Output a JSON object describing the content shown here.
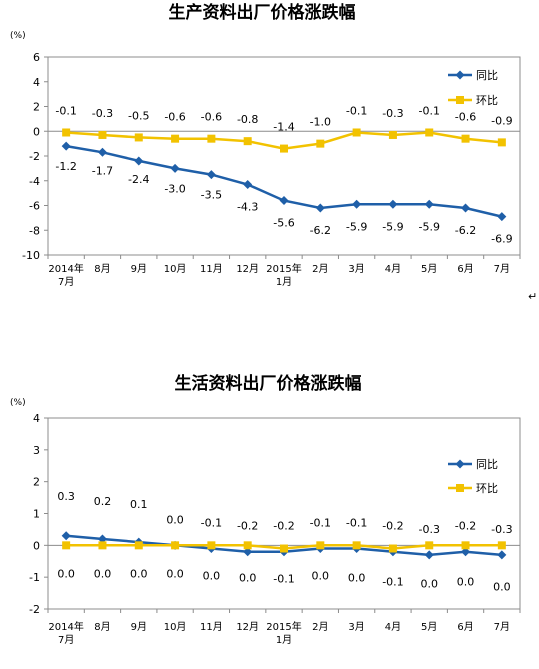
{
  "colors": {
    "yoy": "#1f5fa8",
    "mom": "#f2c200",
    "axis": "#8c8c8c"
  },
  "return_mark": "↵",
  "chart_data": [
    {
      "type": "line",
      "title": "生产资料出厂价格涨跌幅",
      "unit": "(%)",
      "ylim": [
        -10,
        6
      ],
      "yticks": [
        6,
        4,
        2,
        0,
        -2,
        -4,
        -6,
        -8,
        -10
      ],
      "categories": [
        "2014年7月",
        "8月",
        "9月",
        "10月",
        "11月",
        "12月",
        "2015年1月",
        "2月",
        "3月",
        "4月",
        "5月",
        "6月",
        "7月"
      ],
      "category_lines": [
        [
          "2014年",
          "7月"
        ],
        [
          "8月"
        ],
        [
          "9月"
        ],
        [
          "10月"
        ],
        [
          "11月"
        ],
        [
          "12月"
        ],
        [
          "2015年",
          "1月"
        ],
        [
          "2月"
        ],
        [
          "3月"
        ],
        [
          "4月"
        ],
        [
          "5月"
        ],
        [
          "6月"
        ],
        [
          "7月"
        ]
      ],
      "series": [
        {
          "name": "同比",
          "values": [
            -1.2,
            -1.7,
            -2.4,
            -3.0,
            -3.5,
            -4.3,
            -5.6,
            -6.2,
            -5.9,
            -5.9,
            -5.9,
            -6.2,
            -6.9
          ],
          "labels": [
            "-1.2",
            "-1.7",
            "-2.4",
            "-3.0",
            "-3.5",
            "-4.3",
            "-5.6",
            "-6.2",
            "-5.9",
            "-5.9",
            "-5.9",
            "-6.2",
            "-6.9"
          ]
        },
        {
          "name": "环比",
          "values": [
            -0.1,
            -0.3,
            -0.5,
            -0.6,
            -0.6,
            -0.8,
            -1.4,
            -1.0,
            -0.1,
            -0.3,
            -0.1,
            -0.6,
            -0.9
          ],
          "labels": [
            "-0.1",
            "-0.3",
            "-0.5",
            "-0.6",
            "-0.6",
            "-0.8",
            "-1.4",
            "-1.0",
            "-0.1",
            "-0.3",
            "-0.1",
            "-0.6",
            "-0.9"
          ]
        }
      ],
      "legend": "top-right",
      "grid": false
    },
    {
      "type": "line",
      "title": "生活资料出厂价格涨跌幅",
      "unit": "(%)",
      "ylim": [
        -2,
        4
      ],
      "yticks": [
        4,
        3,
        2,
        1,
        0,
        -1,
        -2
      ],
      "categories": [
        "2014年7月",
        "8月",
        "9月",
        "10月",
        "11月",
        "12月",
        "2015年1月",
        "2月",
        "3月",
        "4月",
        "5月",
        "6月",
        "7月"
      ],
      "category_lines": [
        [
          "2014年",
          "7月"
        ],
        [
          "8月"
        ],
        [
          "9月"
        ],
        [
          "10月"
        ],
        [
          "11月"
        ],
        [
          "12月"
        ],
        [
          "2015年",
          "1月"
        ],
        [
          "2月"
        ],
        [
          "3月"
        ],
        [
          "4月"
        ],
        [
          "5月"
        ],
        [
          "6月"
        ],
        [
          "7月"
        ]
      ],
      "series": [
        {
          "name": "同比",
          "values": [
            0.3,
            0.2,
            0.1,
            0.0,
            -0.1,
            -0.2,
            -0.2,
            -0.1,
            -0.1,
            -0.2,
            -0.3,
            -0.2,
            -0.3
          ],
          "labels": [
            "0.3",
            "0.2",
            "0.1",
            "0.0",
            "-0.1",
            "-0.2",
            "-0.2",
            "-0.1",
            "-0.1",
            "-0.2",
            "-0.3",
            "-0.2",
            "-0.3"
          ]
        },
        {
          "name": "环比",
          "values": [
            0.0,
            0.0,
            0.0,
            0.0,
            0.0,
            0.0,
            -0.1,
            0.0,
            0.0,
            -0.1,
            0.0,
            0.0,
            0.0
          ],
          "labels": [
            "0.0",
            "0.0",
            "0.0",
            "0.0",
            "0.0",
            "0.0",
            "-0.1",
            "0.0",
            "0.0",
            "-0.1",
            "0.0",
            "0.0",
            "0.0"
          ]
        }
      ],
      "legend": "top-right",
      "grid": false
    }
  ]
}
